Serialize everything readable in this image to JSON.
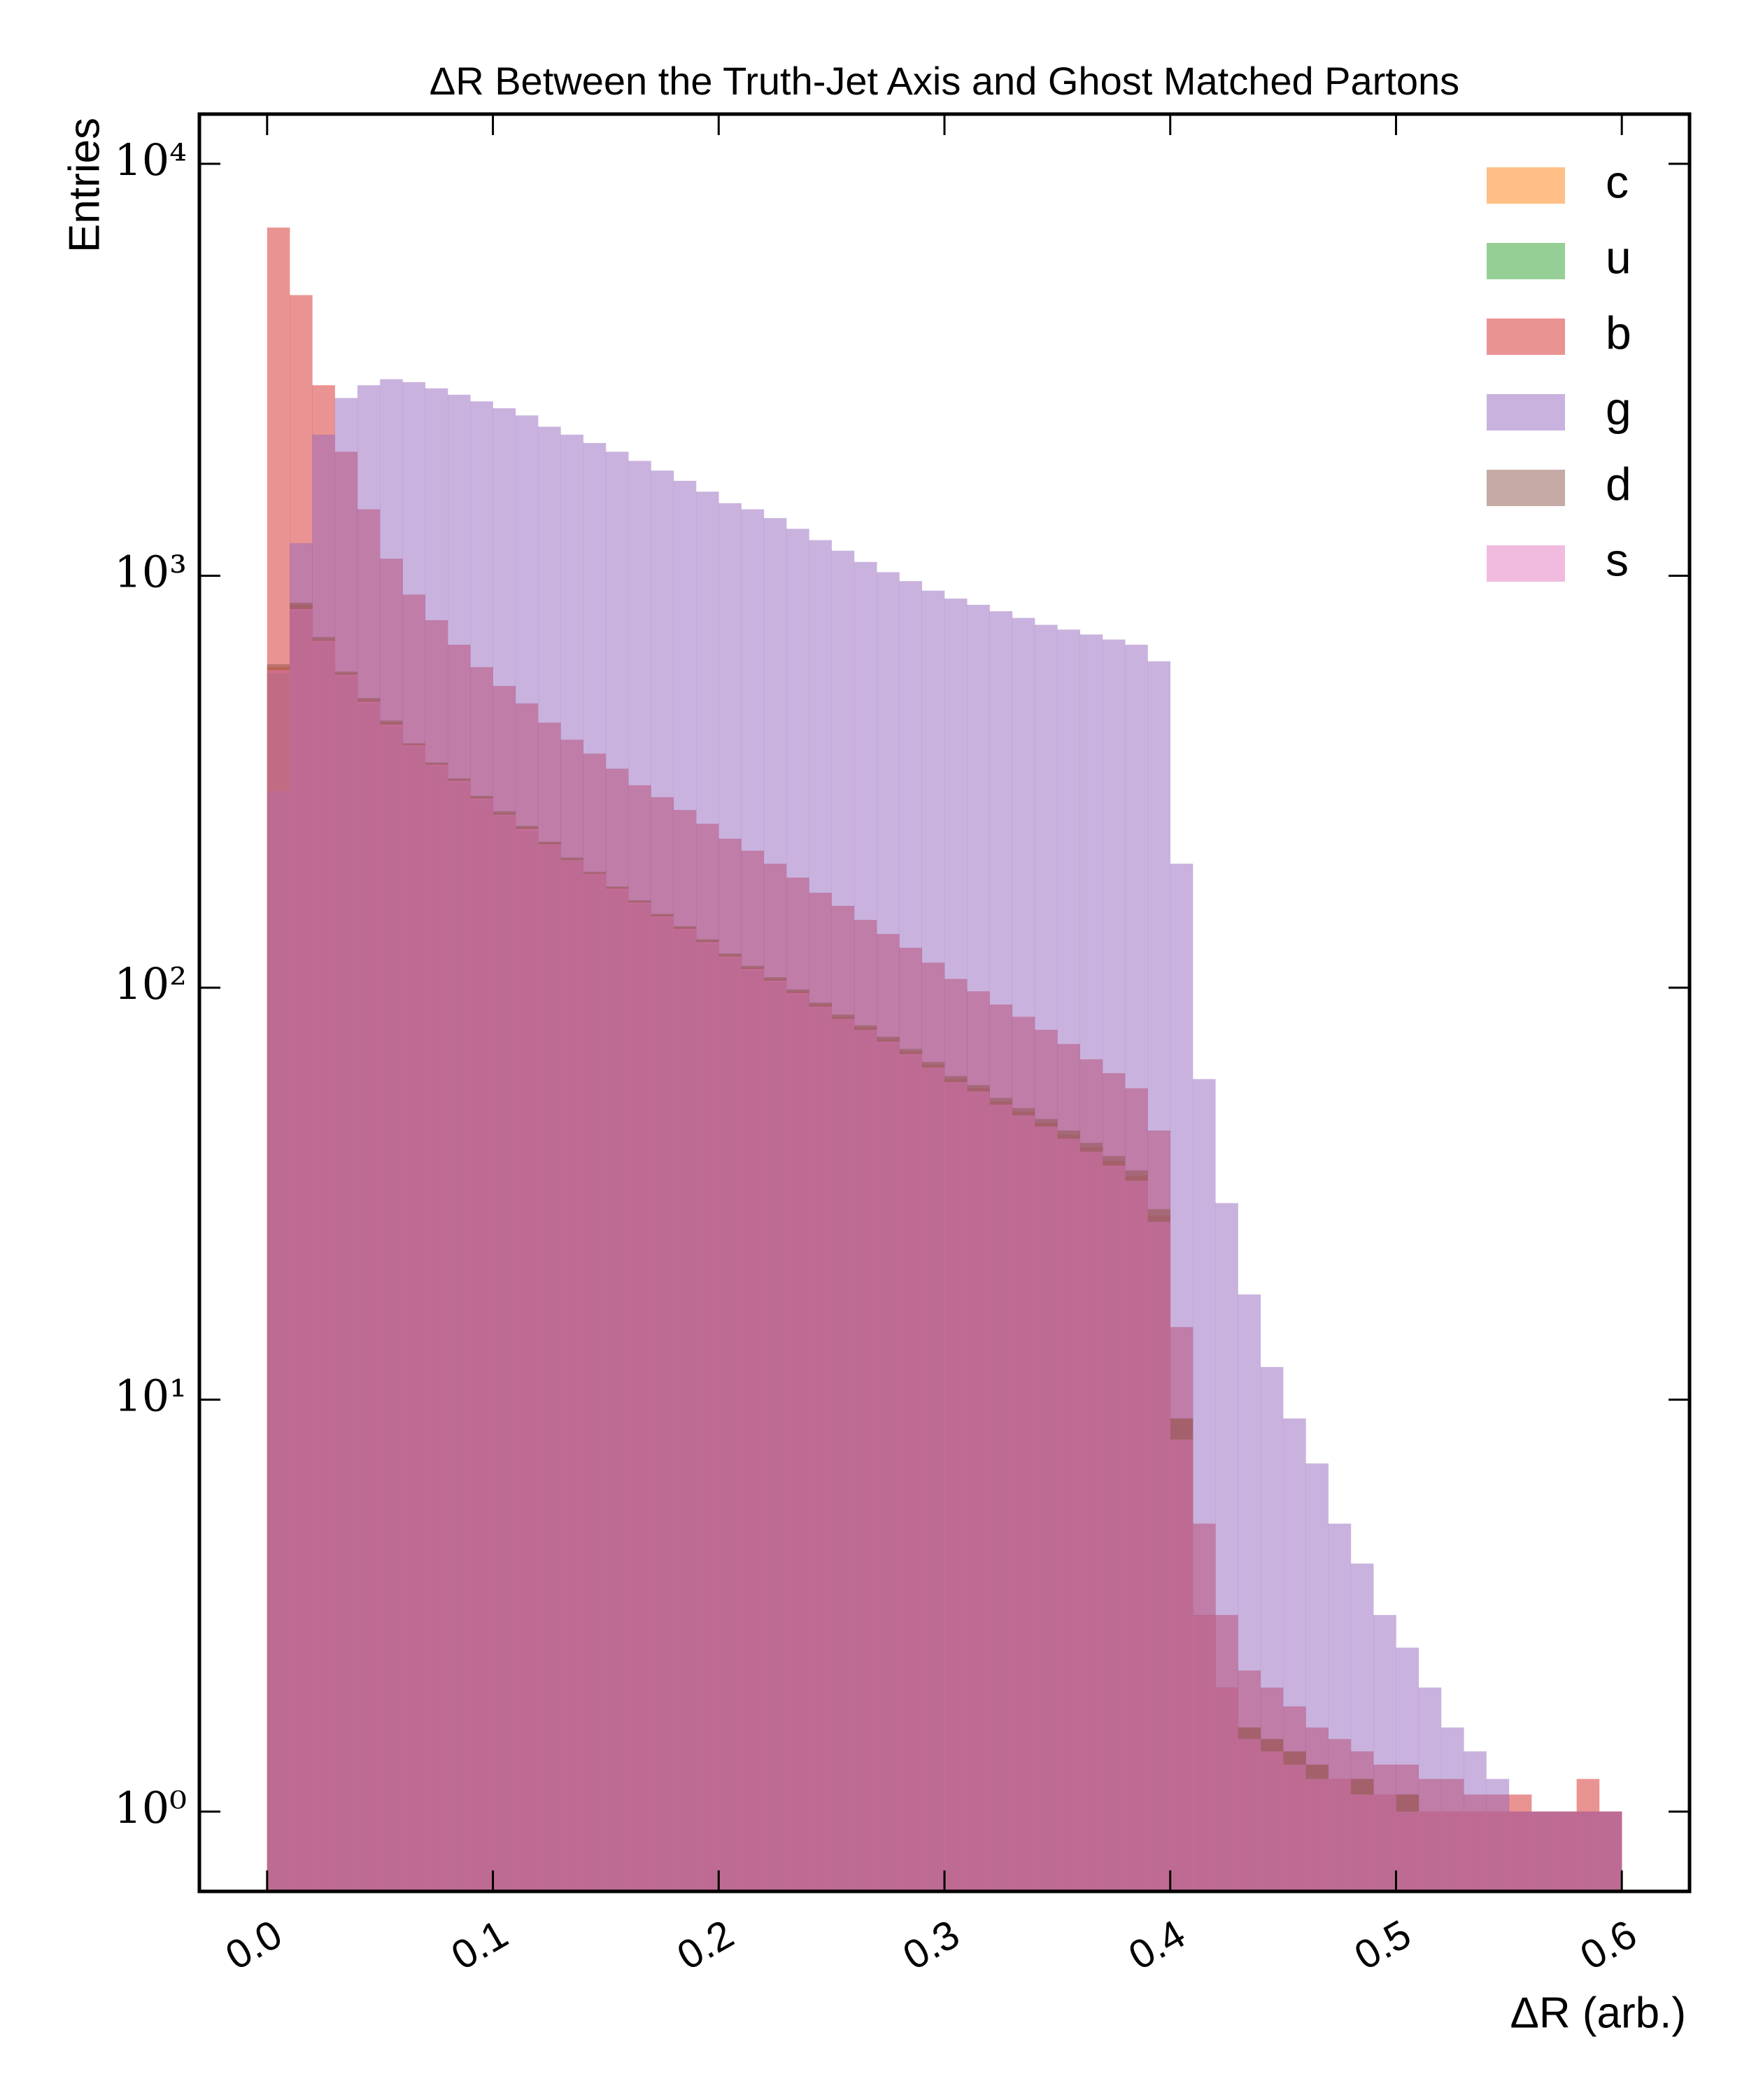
{
  "chart_data": {
    "type": "histogram",
    "title": "ΔR Between the Truth-Jet Axis and Ghost Matched Partons",
    "x_label": "ΔR (arb.)",
    "y_label": "Entries",
    "log_y": true,
    "alpha": 0.5,
    "legend": "upper right",
    "bins": [
      0,
      0.01,
      0.02,
      0.03,
      0.04,
      0.05,
      0.06,
      0.07,
      0.08,
      0.09,
      0.1,
      0.11,
      0.12,
      0.13,
      0.14,
      0.15,
      0.16,
      0.17,
      0.18,
      0.19,
      0.2,
      0.21,
      0.22,
      0.23,
      0.24,
      0.25,
      0.26,
      0.27,
      0.28,
      0.29,
      0.3,
      0.31,
      0.32,
      0.33,
      0.34,
      0.35,
      0.36,
      0.37,
      0.38,
      0.39,
      0.4,
      0.41,
      0.42,
      0.43,
      0.44,
      0.45,
      0.46,
      0.47,
      0.48,
      0.49,
      0.5,
      0.51,
      0.52,
      0.53,
      0.54,
      0.55,
      0.56,
      0.57,
      0.58,
      0.59,
      0.6
    ],
    "series": [
      {
        "name": "c",
        "color": "#ff7f0e",
        "values": [
          600,
          850,
          700,
          580,
          500,
          440,
          390,
          350,
          320,
          290,
          265,
          245,
          225,
          205,
          190,
          175,
          162,
          150,
          140,
          130,
          120,
          112,
          105,
          98,
          91,
          85,
          80,
          75,
          70,
          65,
          60,
          57,
          53,
          50,
          47,
          44,
          41,
          38,
          35,
          28,
          9,
          3,
          2,
          1.6,
          1.5,
          1.4,
          1.3,
          1.2,
          1.2,
          1.1,
          1.1,
          1,
          1,
          1,
          1,
          1,
          1,
          1,
          1,
          1
        ]
      },
      {
        "name": "u",
        "color": "#2ca02c",
        "values": [
          580,
          820,
          690,
          570,
          490,
          430,
          385,
          345,
          315,
          285,
          262,
          240,
          222,
          203,
          188,
          172,
          160,
          148,
          138,
          128,
          118,
          110,
          103,
          96,
          90,
          84,
          79,
          74,
          69,
          64,
          59,
          56,
          52,
          49,
          46,
          43,
          40,
          37,
          34,
          27,
          8,
          3,
          2,
          1.5,
          1.4,
          1.3,
          1.2,
          1.2,
          1.1,
          1.1,
          1,
          1,
          1,
          1,
          1,
          1,
          1,
          1,
          1,
          1
        ]
      },
      {
        "name": "b",
        "color": "#d62728",
        "values": [
          7000,
          4800,
          2900,
          2000,
          1450,
          1100,
          900,
          780,
          680,
          600,
          540,
          490,
          440,
          400,
          370,
          340,
          310,
          290,
          270,
          250,
          230,
          215,
          200,
          185,
          170,
          158,
          146,
          135,
          125,
          115,
          105,
          98,
          91,
          85,
          79,
          73,
          67,
          62,
          57,
          45,
          15,
          5,
          3,
          2.2,
          2,
          1.8,
          1.6,
          1.5,
          1.4,
          1.3,
          1.3,
          1.2,
          1.2,
          1.1,
          1.1,
          1.1,
          1,
          1,
          1.2,
          1
        ]
      },
      {
        "name": "g",
        "color": "#9467bd",
        "values": [
          300,
          1200,
          2200,
          2700,
          2900,
          3000,
          2950,
          2850,
          2750,
          2650,
          2550,
          2450,
          2300,
          2200,
          2100,
          2000,
          1900,
          1800,
          1700,
          1600,
          1500,
          1450,
          1380,
          1300,
          1220,
          1150,
          1080,
          1020,
          970,
          920,
          880,
          850,
          820,
          790,
          760,
          740,
          720,
          700,
          680,
          620,
          200,
          60,
          30,
          18,
          12,
          9,
          7,
          5,
          4,
          3,
          2.5,
          2,
          1.6,
          1.4,
          1.2,
          1,
          1,
          1,
          1,
          1
        ]
      },
      {
        "name": "d",
        "color": "#8c564b",
        "values": [
          610,
          860,
          710,
          585,
          505,
          445,
          392,
          352,
          322,
          292,
          268,
          247,
          226,
          207,
          191,
          176,
          163,
          151,
          141,
          131,
          121,
          113,
          106,
          99,
          92,
          86,
          81,
          76,
          71,
          66,
          61,
          58,
          54,
          51,
          48,
          45,
          42,
          39,
          36,
          29,
          9,
          3,
          2,
          1.6,
          1.5,
          1.4,
          1.3,
          1.2,
          1.2,
          1.1,
          1.1,
          1,
          1,
          1,
          1,
          1,
          1,
          1,
          1,
          1
        ]
      },
      {
        "name": "s",
        "color": "#e377c2",
        "values": [
          590,
          830,
          695,
          575,
          495,
          435,
          388,
          348,
          318,
          288,
          263,
          243,
          223,
          204,
          189,
          174,
          161,
          149,
          139,
          129,
          119,
          111,
          104,
          97,
          90,
          84,
          79,
          74,
          69,
          64,
          59,
          56,
          52,
          49,
          46,
          43,
          40,
          37,
          34,
          27,
          8,
          3,
          2,
          1.5,
          1.4,
          1.3,
          1.2,
          1.2,
          1.1,
          1.1,
          1,
          1,
          1,
          1,
          1,
          1,
          1,
          1,
          1,
          1
        ]
      }
    ],
    "xlim": [
      -0.03,
      0.63
    ],
    "ylim": [
      0.64,
      13200
    ],
    "xticks": [
      {
        "value": 0,
        "label": "0.0"
      },
      0.1,
      0.2,
      0.3,
      0.4,
      0.5,
      0.6
    ],
    "yticks": [
      {
        "value": 1,
        "label": "10⁰"
      },
      {
        "value": 10,
        "label": "10¹"
      },
      {
        "value": 100,
        "label": "10²"
      },
      {
        "value": 1000,
        "label": "10³"
      },
      {
        "value": 10000,
        "label": "10⁴"
      }
    ]
  }
}
